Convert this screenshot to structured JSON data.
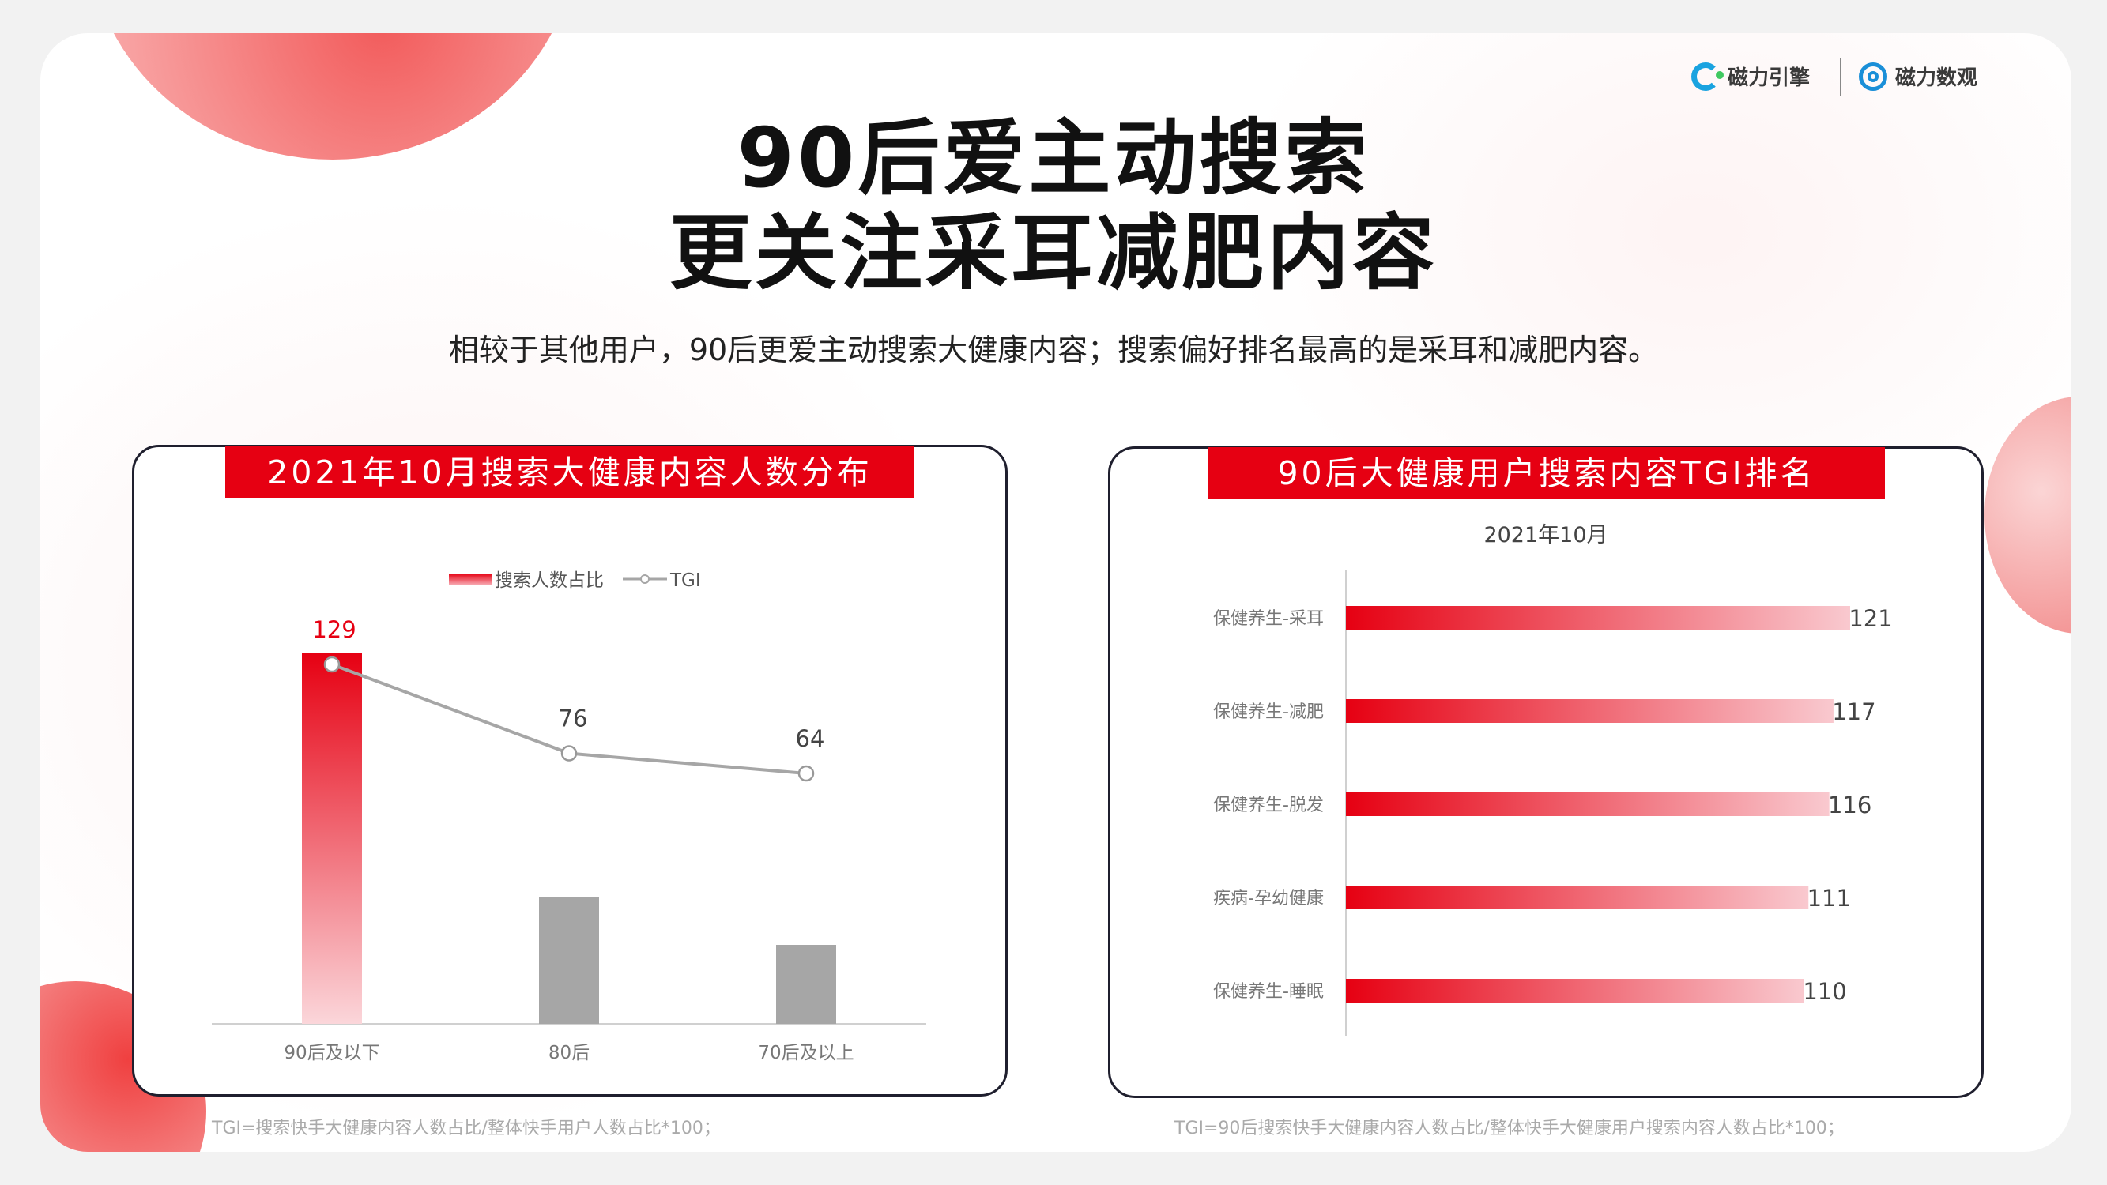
{
  "brand": {
    "logo1_label": "磁力引擎",
    "logo2_label": "磁力数观"
  },
  "headline": {
    "line1": "90后爱主动搜索",
    "line2": "更关注采耳减肥内容"
  },
  "subtitle": "相较于其他用户，90后更爱主动搜索大健康内容；搜索偏好排名最高的是采耳和减肥内容。",
  "colors": {
    "accent_red": "#e60012",
    "bar_gray": "#a6a6a6",
    "line_gray": "#a6a6a6"
  },
  "chart_data": [
    {
      "type": "bar",
      "title": "2021年10月搜索大健康内容人数分布",
      "categories": [
        "90后及以下",
        "80后",
        "70后及以上"
      ],
      "series": [
        {
          "name": "搜索人数占比",
          "type": "bar",
          "values": [
            0.47,
            0.16,
            0.1
          ],
          "highlight_index": 0
        },
        {
          "name": "TGI",
          "type": "line",
          "values": [
            129,
            76,
            64
          ],
          "labels": [
            "129",
            "76",
            "64"
          ]
        }
      ],
      "legend": "top-center",
      "grid": false,
      "footnote": "TGI=搜索快手大健康内容人数占比/整体快手用户人数占比*100；"
    },
    {
      "type": "bar",
      "orientation": "horizontal",
      "title": "90后大健康用户搜索内容TGI排名",
      "subtitle": "2021年10月",
      "categories": [
        "保健养生-采耳",
        "保健养生-减肥",
        "保健养生-脱发",
        "疾病-孕幼健康",
        "保健养生-睡眠"
      ],
      "values": [
        121,
        117,
        116,
        111,
        110
      ],
      "value_labels": [
        "121",
        "117",
        "116",
        "111",
        "110"
      ],
      "xlim": [
        0,
        121
      ],
      "grid": false,
      "footnote": "TGI=90后搜索快手大健康内容人数占比/整体快手大健康用户搜索内容人数占比*100；"
    }
  ]
}
